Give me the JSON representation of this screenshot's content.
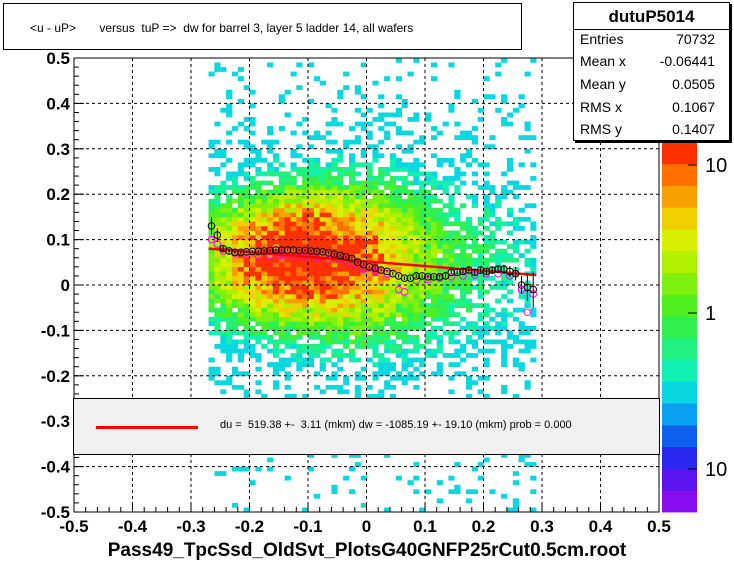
{
  "title": "<u - uP>       versus  tuP =>  dw for barrel 3, layer 5 ladder 14, all wafers",
  "stats": {
    "name": "dutuP5014",
    "rows": [
      {
        "label": "Entries",
        "value": "70732"
      },
      {
        "label": "Mean x",
        "value": "-0.06441"
      },
      {
        "label": "Mean y",
        "value": "0.0505"
      },
      {
        "label": "RMS x",
        "value": "0.1067"
      },
      {
        "label": "RMS y",
        "value": "0.1407"
      }
    ]
  },
  "fit": {
    "text": "du =  519.38 +-  3.11 (mkm) dw = -1085.19 +- 19.10 (mkm) prob = 0.000",
    "line_color": "#ff0000"
  },
  "footer": "Pass49_TpcSsd_OldSvt_PlotsG40GNFP25rCut0.5cm.root",
  "colorbar": {
    "labels": [
      "10",
      "1",
      "10"
    ]
  },
  "chart_data": {
    "type": "heatmap",
    "title": "<u - uP>       versus  tuP =>  dw for barrel 3, layer 5 ladder 14, all wafers",
    "xlabel": "",
    "ylabel": "",
    "xlim": [
      -0.5,
      0.5
    ],
    "ylim": [
      -0.5,
      0.5
    ],
    "x_ticks": [
      "-0.5",
      "-0.4",
      "-0.3",
      "-0.2",
      "-0.1",
      "0",
      "0.1",
      "0.2",
      "0.3",
      "0.4",
      "0.5"
    ],
    "y_ticks": [
      "-0.5",
      "-0.4",
      "-0.3",
      "-0.2",
      "-0.1",
      "0",
      "0.1",
      "0.2",
      "0.3",
      "0.4",
      "0.5"
    ],
    "grid": true,
    "z_scale": "log",
    "density_center": [
      -0.12,
      0.06
    ],
    "density_extent_x": [
      -0.27,
      0.29
    ],
    "series": [
      {
        "kind": "profile-mean",
        "color": "#000000",
        "x": [
          -0.265,
          -0.255,
          -0.245,
          -0.235,
          -0.225,
          -0.215,
          -0.205,
          -0.195,
          -0.185,
          -0.175,
          -0.165,
          -0.155,
          -0.145,
          -0.135,
          -0.125,
          -0.115,
          -0.105,
          -0.095,
          -0.085,
          -0.075,
          -0.065,
          -0.055,
          -0.045,
          -0.035,
          -0.025,
          -0.015,
          -0.005,
          0.005,
          0.015,
          0.025,
          0.035,
          0.045,
          0.055,
          0.065,
          0.075,
          0.085,
          0.095,
          0.105,
          0.115,
          0.125,
          0.135,
          0.145,
          0.155,
          0.165,
          0.175,
          0.185,
          0.195,
          0.205,
          0.215,
          0.225,
          0.235,
          0.245,
          0.255,
          0.265,
          0.275,
          0.285
        ],
        "y": [
          0.13,
          0.11,
          0.08,
          0.075,
          0.072,
          0.072,
          0.073,
          0.074,
          0.074,
          0.075,
          0.076,
          0.077,
          0.077,
          0.077,
          0.077,
          0.076,
          0.076,
          0.075,
          0.074,
          0.073,
          0.071,
          0.068,
          0.065,
          0.062,
          0.058,
          0.05,
          0.045,
          0.04,
          0.037,
          0.033,
          0.03,
          0.025,
          0.02,
          0.015,
          0.015,
          0.02,
          0.02,
          0.018,
          0.018,
          0.018,
          0.02,
          0.028,
          0.028,
          0.03,
          0.033,
          0.028,
          0.033,
          0.03,
          0.033,
          0.035,
          0.035,
          0.03,
          0.025,
          0.0,
          -0.005,
          -0.01
        ],
        "err": [
          0.02,
          0.015,
          0.008,
          0.005,
          0.004,
          0.003,
          0.003,
          0.003,
          0.003,
          0.003,
          0.003,
          0.003,
          0.003,
          0.003,
          0.003,
          0.003,
          0.003,
          0.003,
          0.003,
          0.003,
          0.003,
          0.003,
          0.003,
          0.003,
          0.003,
          0.003,
          0.003,
          0.003,
          0.003,
          0.003,
          0.003,
          0.004,
          0.004,
          0.004,
          0.004,
          0.004,
          0.004,
          0.004,
          0.004,
          0.004,
          0.005,
          0.005,
          0.005,
          0.005,
          0.006,
          0.006,
          0.006,
          0.007,
          0.008,
          0.008,
          0.01,
          0.012,
          0.015,
          0.02,
          0.03,
          0.04
        ]
      },
      {
        "kind": "profile-alt",
        "color": "#ff00ff",
        "x": [
          -0.265,
          -0.255,
          -0.245,
          -0.225,
          -0.205,
          -0.185,
          -0.165,
          -0.145,
          -0.125,
          -0.105,
          -0.085,
          -0.065,
          -0.045,
          -0.025,
          -0.005,
          0.015,
          0.035,
          0.055,
          0.065,
          0.085,
          0.105,
          0.125,
          0.145,
          0.165,
          0.185,
          0.205,
          0.225,
          0.245,
          0.265,
          0.275,
          0.285
        ],
        "y": [
          0.1,
          0.09,
          0.075,
          0.07,
          0.068,
          0.065,
          0.065,
          0.065,
          0.063,
          0.062,
          0.06,
          0.057,
          0.055,
          0.045,
          0.035,
          0.03,
          0.025,
          -0.01,
          -0.015,
          0.01,
          0.012,
          0.015,
          0.018,
          0.02,
          0.022,
          0.025,
          0.025,
          0.02,
          -0.01,
          -0.06,
          -0.02
        ]
      },
      {
        "kind": "linear-fit",
        "color": "#ff0000",
        "x": [
          -0.27,
          0.29
        ],
        "y": [
          0.08,
          0.022
        ]
      }
    ]
  }
}
